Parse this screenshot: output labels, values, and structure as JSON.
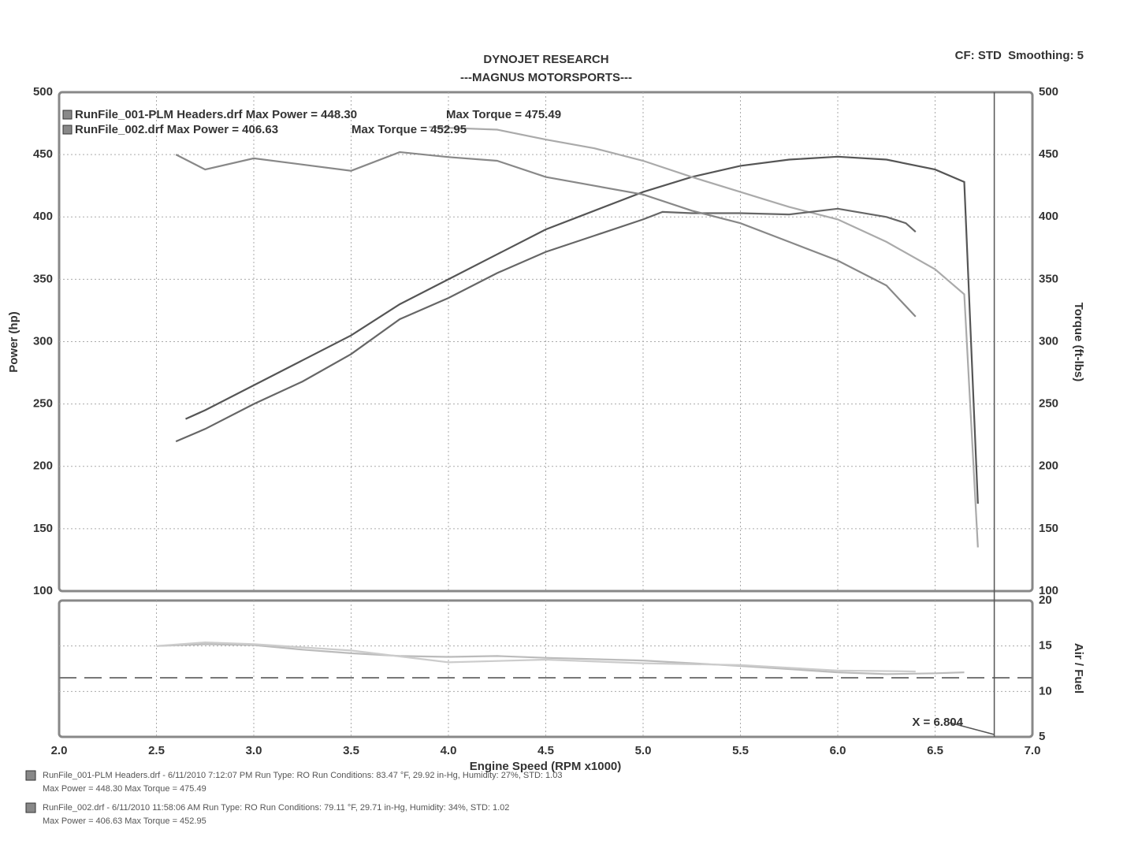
{
  "chart_data": [
    {
      "type": "line",
      "title": "DYNOJET RESEARCH",
      "subtitle": "---MAGNUS MOTORSPORTS---",
      "note": "CF: STD  Smoothing: 5",
      "ylabel": "Power (hp)",
      "y2label": "Torque (ft-lbs)",
      "xlim": [
        2,
        7
      ],
      "ylim": [
        100,
        500
      ],
      "y2lim": [
        100,
        500
      ],
      "yticks": [
        100,
        150,
        200,
        250,
        300,
        350,
        400,
        450,
        500
      ],
      "y2ticks": [
        100,
        150,
        200,
        250,
        300,
        350,
        400,
        450,
        500
      ],
      "legend": [
        {
          "text": "RunFile_001-PLM Headers.drf Max Power = 448.30",
          "text2": "Max Torque = 475.49"
        },
        {
          "text": "RunFile_002.drf Max Power = 406.63",
          "text2": "Max Torque = 452.95"
        }
      ],
      "series": [
        {
          "color": "#555555",
          "x": [
            2.65,
            2.75,
            3,
            3.25,
            3.5,
            3.75,
            4,
            4.25,
            4.5,
            4.75,
            5,
            5.25,
            5.5,
            5.75,
            6,
            6.25,
            6.5,
            6.65,
            6.72
          ],
          "values": [
            238,
            245,
            265,
            285,
            305,
            330,
            350,
            370,
            390,
            405,
            420,
            432,
            441,
            446,
            448.3,
            446,
            438,
            428,
            170
          ]
        },
        {
          "color": "#aaaaaa",
          "axis": "y2",
          "x": [
            3.9,
            4.25,
            4.5,
            4.75,
            5,
            5.25,
            5.5,
            5.75,
            6,
            6.25,
            6.5,
            6.65,
            6.72
          ],
          "values": [
            472,
            470,
            462,
            455,
            445,
            432,
            420,
            408,
            398,
            380,
            358,
            338,
            135
          ]
        },
        {
          "color": "#666666",
          "x": [
            2.6,
            2.75,
            3,
            3.25,
            3.5,
            3.75,
            4,
            4.25,
            4.5,
            4.75,
            5,
            5.1,
            5.25,
            5.5,
            5.75,
            6,
            6.25,
            6.35,
            6.4
          ],
          "values": [
            220,
            230,
            250,
            268,
            290,
            318,
            335,
            355,
            372,
            385,
            398,
            404,
            403,
            403,
            402,
            406.6,
            400,
            395,
            388
          ]
        },
        {
          "color": "#888888",
          "axis": "y2",
          "x": [
            2.6,
            2.75,
            3,
            3.25,
            3.5,
            3.75,
            4,
            4.25,
            4.5,
            4.75,
            5,
            5.25,
            5.5,
            5.75,
            6,
            6.25,
            6.4
          ],
          "values": [
            450,
            438,
            447,
            442,
            437,
            452,
            448,
            445,
            432,
            425,
            418,
            405,
            395,
            380,
            365,
            345,
            320
          ]
        }
      ]
    },
    {
      "type": "line",
      "xlabel": "Engine Speed (RPM x1000)",
      "y2label": "Air / Fuel",
      "xlim": [
        2,
        7
      ],
      "y2lim": [
        5,
        20
      ],
      "y2ticks": [
        5,
        10,
        15,
        20
      ],
      "xticks": [
        {
          "value": 2,
          "label": "2.0"
        },
        2.5,
        {
          "value": 3,
          "label": "3.0"
        },
        3.5,
        {
          "value": 4,
          "label": "4.0"
        },
        4.5,
        {
          "value": 5,
          "label": "5.0"
        },
        5.5,
        {
          "value": 6,
          "label": "6.0"
        },
        6.5,
        {
          "value": 7,
          "label": "7.0"
        }
      ],
      "reference_line": 11.5,
      "cursor": {
        "value": 6.804,
        "label": "X = 6.804"
      },
      "series": [
        {
          "color": "#bbbbbb",
          "axis": "y2",
          "x": [
            2.5,
            2.75,
            3,
            3.25,
            3.5,
            3.75,
            4,
            4.25,
            4.5,
            5,
            5.5,
            6,
            6.25,
            6.5,
            6.65
          ],
          "values": [
            15,
            15.2,
            15.1,
            14.6,
            14.2,
            13.9,
            13.8,
            13.9,
            13.7,
            13.4,
            12.8,
            12.1,
            11.9,
            12,
            12.1
          ]
        },
        {
          "color": "#cccccc",
          "axis": "y2",
          "x": [
            2.5,
            2.75,
            3,
            3.5,
            4,
            4.5,
            5,
            5.5,
            6,
            6.4
          ],
          "values": [
            15,
            15.4,
            15.2,
            14.5,
            13.2,
            13.5,
            13.1,
            12.9,
            12.3,
            12.2
          ]
        }
      ]
    }
  ],
  "footer": [
    [
      "RunFile_001-PLM Headers.drf - 6/11/2010 7:12:07 PM  Run Type: RO  Run Conditions: 83.47 °F, 29.92 in-Hg,  Humidity: 27%, STD: 1.03",
      "Max Power = 448.30  Max Torque = 475.49"
    ],
    [
      "RunFile_002.drf - 6/11/2010 11:58:06 AM  Run Type: RO  Run Conditions: 79.11 °F, 29.71 in-Hg,  Humidity: 34%, STD: 1.02",
      "Max Power = 406.63  Max Torque = 452.95"
    ]
  ]
}
